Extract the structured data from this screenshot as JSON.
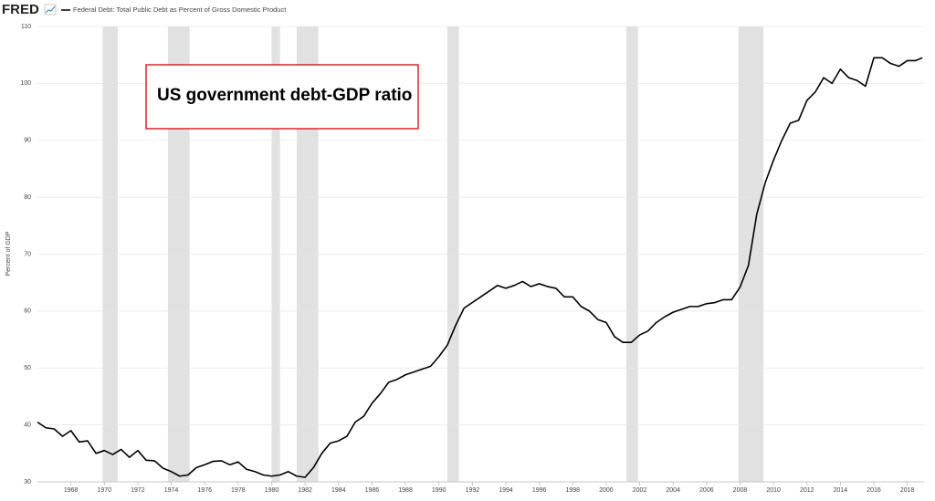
{
  "chart_data": {
    "type": "line",
    "logo": "FRED",
    "y_label": "Percent of GDP",
    "annotation": "US government debt-GDP ratio",
    "grid": true,
    "x": [
      1966,
      1966.5,
      1967,
      1967.5,
      1968,
      1968.5,
      1969,
      1969.5,
      1970,
      1970.5,
      1971,
      1971.5,
      1972,
      1972.5,
      1973,
      1973.5,
      1974,
      1974.5,
      1975,
      1975.5,
      1976,
      1976.5,
      1977,
      1977.5,
      1978,
      1978.5,
      1979,
      1979.5,
      1980,
      1980.5,
      1981,
      1981.5,
      1982,
      1982.5,
      1983,
      1983.5,
      1984,
      1984.5,
      1985,
      1985.5,
      1986,
      1986.5,
      1987,
      1987.5,
      1988,
      1988.5,
      1989,
      1989.5,
      1990,
      1990.5,
      1991,
      1991.5,
      1992,
      1992.5,
      1993,
      1993.5,
      1994,
      1994.5,
      1995,
      1995.5,
      1996,
      1996.5,
      1997,
      1997.5,
      1998,
      1998.5,
      1999,
      1999.5,
      2000,
      2000.5,
      2001,
      2001.5,
      2002,
      2002.5,
      2003,
      2003.5,
      2004,
      2004.5,
      2005,
      2005.5,
      2006,
      2006.5,
      2007,
      2007.5,
      2008,
      2008.5,
      2009,
      2009.5,
      2010,
      2010.5,
      2011,
      2011.5,
      2012,
      2012.5,
      2013,
      2013.5,
      2014,
      2014.5,
      2015,
      2015.5,
      2016,
      2016.5,
      2017,
      2017.5,
      2018,
      2018.5,
      2018.9
    ],
    "series": [
      {
        "name": "Federal Debt: Total Public Debt as Percent of Gross Domestic Product",
        "color": "#000000",
        "values": [
          40.5,
          39.5,
          39.3,
          38,
          39,
          37,
          37.2,
          35,
          35.5,
          34.8,
          35.7,
          34.3,
          35.5,
          33.8,
          33.7,
          32.4,
          31.8,
          31,
          31.2,
          32.5,
          33,
          33.6,
          33.7,
          33,
          33.5,
          32.2,
          31.8,
          31.2,
          31,
          31.2,
          31.8,
          31,
          30.8,
          32.5,
          35,
          36.8,
          37.2,
          38,
          40.5,
          41.5,
          43.8,
          45.5,
          47.5,
          48,
          48.8,
          49.3,
          49.8,
          50.3,
          52,
          54,
          57.5,
          60.5,
          61.5,
          62.5,
          63.5,
          64.5,
          64,
          64.5,
          65.2,
          64.3,
          64.8,
          64.3,
          64,
          62.5,
          62.5,
          60.8,
          60,
          58.5,
          58,
          55.5,
          54.5,
          54.5,
          55.8,
          56.5,
          58,
          59,
          59.8,
          60.3,
          60.8,
          60.8,
          61.3,
          61.5,
          62,
          62,
          64.2,
          68,
          77,
          82.5,
          86.5,
          90,
          93,
          93.5,
          97,
          98.5,
          101,
          100,
          102.5,
          101,
          100.5,
          99.5,
          104.5,
          104.5,
          103.5,
          103,
          104,
          104,
          104.5
        ]
      }
    ],
    "recessions": [
      [
        1969.9,
        1970.8
      ],
      [
        1973.8,
        1975.1
      ],
      [
        1980.0,
        1980.5
      ],
      [
        1981.5,
        1982.8
      ],
      [
        1990.5,
        1991.2
      ],
      [
        2001.2,
        2001.9
      ],
      [
        2007.9,
        2009.4
      ]
    ],
    "recession_color": "#e1e1e1",
    "xlim": [
      1966,
      2019
    ],
    "xticks": [
      1968,
      1970,
      1972,
      1974,
      1976,
      1978,
      1980,
      1982,
      1984,
      1986,
      1988,
      1990,
      1992,
      1994,
      1996,
      1998,
      2000,
      2002,
      2004,
      2006,
      2008,
      2010,
      2012,
      2014,
      2016,
      2018
    ],
    "ylim": [
      30,
      110
    ],
    "yticks": [
      30,
      40,
      50,
      60,
      70,
      80,
      90,
      100,
      110
    ]
  }
}
